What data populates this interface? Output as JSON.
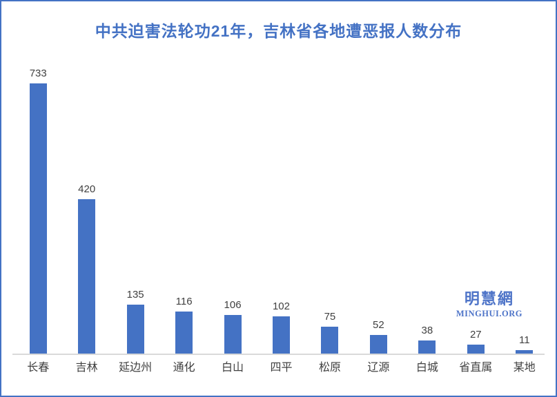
{
  "title": "中共迫害法轮功21年，吉林省各地遭恶报人数分布",
  "watermark": {
    "cn": "明慧網",
    "en": "MINGHUI.ORG"
  },
  "colors": {
    "bar": "#4472C4",
    "title": "#4472C4",
    "frame_border": "#4472C4",
    "value_label": "#404040",
    "category_label": "#404040",
    "axis_line": "#D9D9D9",
    "watermark": "#4E74C8"
  },
  "chart_data": {
    "type": "bar",
    "title": "中共迫害法轮功21年，吉林省各地遭恶报人数分布",
    "categories": [
      "长春",
      "吉林",
      "延边州",
      "通化",
      "白山",
      "四平",
      "松原",
      "辽源",
      "白城",
      "省直属",
      "某地"
    ],
    "values": [
      733,
      420,
      135,
      116,
      106,
      102,
      75,
      52,
      38,
      27,
      11
    ],
    "xlabel": "",
    "ylabel": "",
    "ylim": [
      0,
      780
    ],
    "bar_color": "#4472C4",
    "data_labels": true,
    "legend": false,
    "grid": false,
    "y_axis_visible": false
  }
}
